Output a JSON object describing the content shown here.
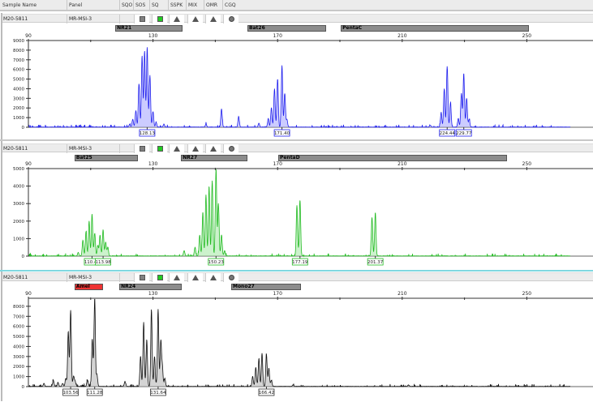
{
  "header": {
    "columns": [
      "Sample Name",
      "Panel",
      "SQO",
      "SOS",
      "SQ",
      "SSPK",
      "MIX",
      "OMR",
      "CGQ"
    ]
  },
  "status_icons": [
    {
      "name": "sos-square-icon",
      "color": "#808080"
    },
    {
      "name": "sq-square-icon",
      "color": "#22cc22"
    },
    {
      "name": "sspk-triangle-icon",
      "color": "#555555"
    },
    {
      "name": "mix-triangle-icon",
      "color": "#555555"
    },
    {
      "name": "omr-triangle-icon",
      "color": "#555555"
    },
    {
      "name": "cgq-circle-icon",
      "color": "#777777"
    }
  ],
  "chart_data": [
    {
      "type": "line",
      "sample": "M20-5811",
      "panel": "MR-MSI-3",
      "color": "#2222ee",
      "fill": "#9999ff",
      "xlim": [
        90,
        264
      ],
      "x_ticks": [
        "90",
        "130",
        "170",
        "210",
        "250"
      ],
      "ylim": [
        0,
        9000
      ],
      "y_ticks": [
        "0",
        "1000",
        "2000",
        "3000",
        "4000",
        "5000",
        "6000",
        "7000",
        "8000",
        "9000"
      ],
      "bins": [
        {
          "label": "NR21",
          "start": 117.9,
          "end": 139.5,
          "color": "#8c8c8c"
        },
        {
          "label": "Bat26",
          "start": 160.3,
          "end": 185.6,
          "color": "#8c8c8c"
        },
        {
          "label": "PentaC",
          "start": 190.3,
          "end": 250.7,
          "color": "#8c8c8c"
        }
      ],
      "peaks": [
        [
          122.5,
          300
        ],
        [
          123.5,
          800
        ],
        [
          124.5,
          1700
        ],
        [
          125.5,
          4500
        ],
        [
          126.5,
          7400
        ],
        [
          127.3,
          7900
        ],
        [
          128.13,
          8300
        ],
        [
          129,
          5400
        ],
        [
          130,
          1600
        ],
        [
          131,
          500
        ],
        [
          133.5,
          300
        ],
        [
          147,
          300
        ],
        [
          152,
          1900
        ],
        [
          157.5,
          1100
        ],
        [
          164,
          400
        ],
        [
          167,
          900
        ],
        [
          168,
          2000
        ],
        [
          169,
          4000
        ],
        [
          170,
          5000
        ],
        [
          171.4,
          6400
        ],
        [
          172.3,
          3500
        ],
        [
          173,
          800
        ],
        [
          219,
          200
        ],
        [
          222.5,
          1500
        ],
        [
          223.5,
          4000
        ],
        [
          224.44,
          6300
        ],
        [
          225.5,
          2500
        ],
        [
          228,
          900
        ],
        [
          229,
          3500
        ],
        [
          229.77,
          5600
        ],
        [
          230.7,
          3000
        ],
        [
          231.5,
          800
        ]
      ],
      "peak_labels": [
        "128.13",
        "171.40",
        "224.44",
        "229.77"
      ]
    },
    {
      "type": "line",
      "sample": "M20-5811",
      "panel": "MR-MSI-3",
      "color": "#22bb22",
      "fill": "#99e699",
      "xlim": [
        90,
        264
      ],
      "x_ticks": [
        "90",
        "130",
        "170",
        "210",
        "250"
      ],
      "ylim": [
        0,
        5000
      ],
      "y_ticks": [
        "0",
        "1000",
        "2000",
        "3000",
        "4000",
        "5000"
      ],
      "bins": [
        {
          "label": "Bat25",
          "start": 104.8,
          "end": 125.2,
          "color": "#8c8c8c"
        },
        {
          "label": "NR27",
          "start": 139,
          "end": 160.3,
          "color": "#8c8c8c"
        },
        {
          "label": "PentaD",
          "start": 170.2,
          "end": 243.6,
          "color": "#8c8c8c"
        }
      ],
      "peaks": [
        [
          106,
          200
        ],
        [
          107.5,
          900
        ],
        [
          108.5,
          1400
        ],
        [
          109.5,
          2000
        ],
        [
          110.43,
          2400
        ],
        [
          111.3,
          1300
        ],
        [
          112.3,
          600
        ],
        [
          113,
          1200
        ],
        [
          113.98,
          1500
        ],
        [
          114.8,
          800
        ],
        [
          115.5,
          500
        ],
        [
          140,
          300
        ],
        [
          143.5,
          500
        ],
        [
          145,
          1200
        ],
        [
          146,
          2500
        ],
        [
          147,
          3500
        ],
        [
          148,
          4000
        ],
        [
          149,
          4300
        ],
        [
          150.23,
          5000
        ],
        [
          151,
          3000
        ],
        [
          152,
          1200
        ],
        [
          153,
          300
        ],
        [
          176.2,
          2900
        ],
        [
          177.19,
          3200
        ],
        [
          200.3,
          2200
        ],
        [
          201.37,
          2500
        ]
      ],
      "peak_labels": [
        "110.43",
        "113.98",
        "150.23",
        "177.19",
        "201.37"
      ]
    },
    {
      "type": "line",
      "sample": "M20-5811",
      "panel": "MR-MSI-3",
      "color": "#111111",
      "fill": "#aaaaaa",
      "xlim": [
        90,
        264
      ],
      "x_ticks": [
        "90",
        "130",
        "170",
        "210",
        "250"
      ],
      "ylim": [
        0,
        8800
      ],
      "y_ticks": [
        "0",
        "1000",
        "2000",
        "3000",
        "4000",
        "5000",
        "6000",
        "7000",
        "8000"
      ],
      "bins": [
        {
          "label": "Amel",
          "start": 104.8,
          "end": 114,
          "color": "#ee3333"
        },
        {
          "label": "NR24",
          "start": 119.2,
          "end": 139.2,
          "color": "#8c8c8c"
        },
        {
          "label": "Mono27",
          "start": 155.1,
          "end": 177.5,
          "color": "#8c8c8c"
        }
      ],
      "peaks": [
        [
          95,
          300
        ],
        [
          98,
          600
        ],
        [
          99.5,
          400
        ],
        [
          101,
          300
        ],
        [
          102,
          800
        ],
        [
          102.8,
          5500
        ],
        [
          103.56,
          7600
        ],
        [
          104.5,
          1000
        ],
        [
          105,
          500
        ],
        [
          109,
          600
        ],
        [
          110.5,
          4700
        ],
        [
          111.28,
          8800
        ],
        [
          112,
          1200
        ],
        [
          121,
          500
        ],
        [
          126,
          3000
        ],
        [
          127,
          6400
        ],
        [
          128,
          4600
        ],
        [
          129.5,
          7700
        ],
        [
          130.5,
          3000
        ],
        [
          131.64,
          7700
        ],
        [
          132.5,
          4500
        ],
        [
          133,
          2000
        ],
        [
          133.8,
          800
        ],
        [
          162,
          1000
        ],
        [
          163,
          1900
        ],
        [
          164,
          2800
        ],
        [
          165,
          3300
        ],
        [
          166.42,
          3200
        ],
        [
          167.2,
          1800
        ],
        [
          168,
          600
        ],
        [
          175,
          150
        ],
        [
          212,
          150
        ]
      ],
      "peak_labels": [
        "103.56",
        "111.28",
        "131.64",
        "166.42"
      ]
    }
  ]
}
